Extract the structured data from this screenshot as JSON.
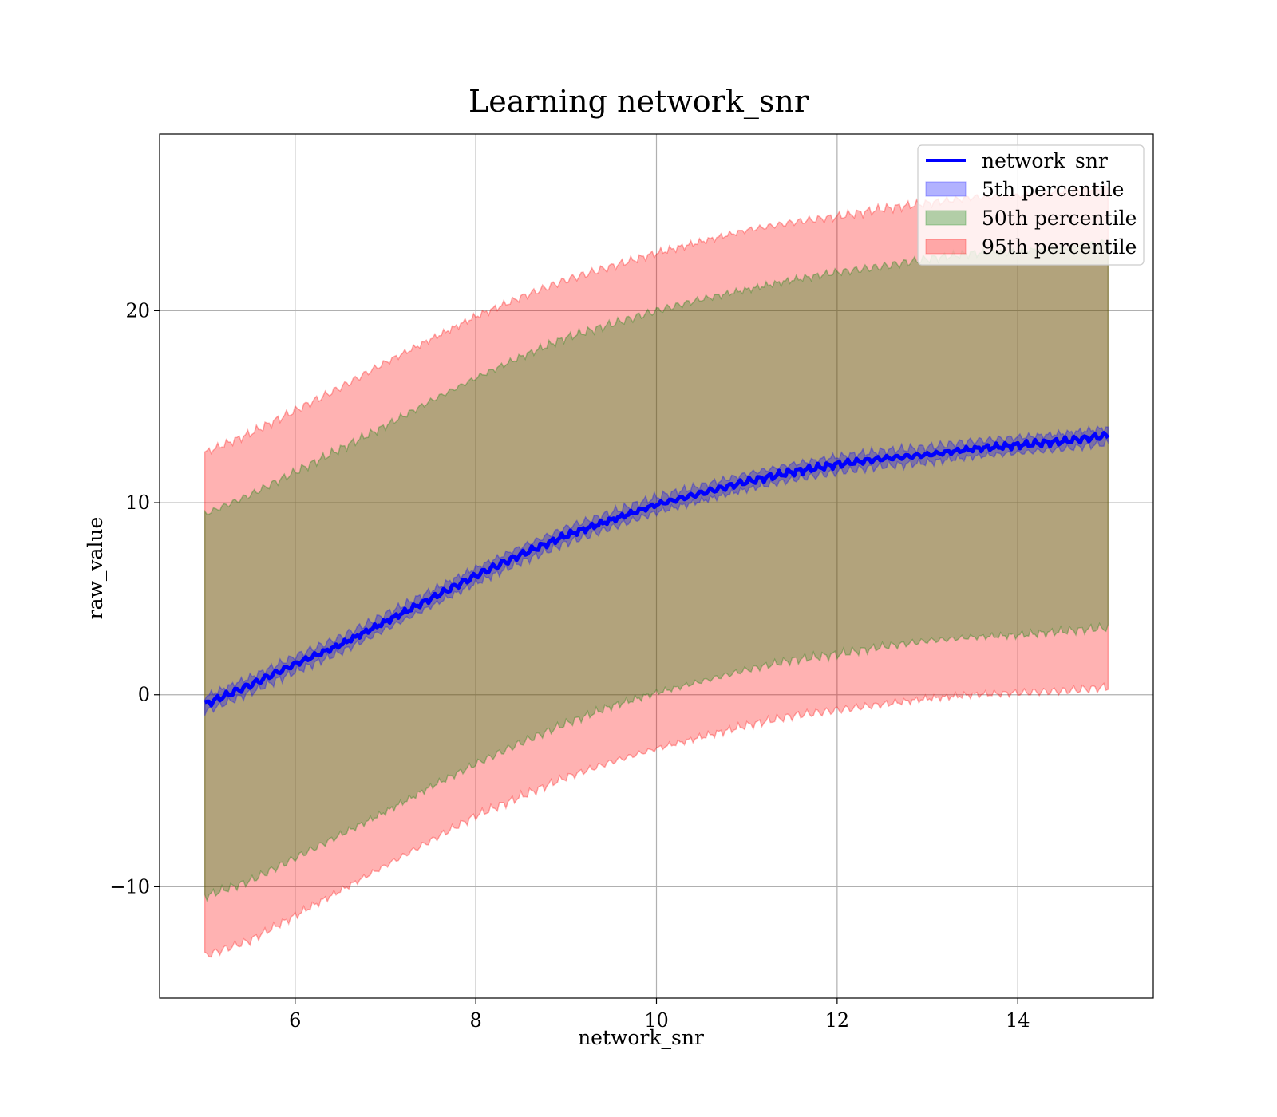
{
  "chart_data": {
    "type": "area",
    "title": "Learning network_snr",
    "xlabel": "network_snr",
    "ylabel": "raw_value",
    "xlim": [
      4.5,
      15.5
    ],
    "ylim": [
      -15.8,
      29.2
    ],
    "xticks": [
      6,
      8,
      10,
      12,
      14
    ],
    "yticks": [
      -10,
      0,
      10,
      20
    ],
    "xtick_labels": [
      "6",
      "8",
      "10",
      "12",
      "14"
    ],
    "ytick_labels": [
      "−10",
      "0",
      "10",
      "20"
    ],
    "grid": true,
    "legend_position": "top-right",
    "x": [
      5,
      5.5,
      6,
      6.5,
      7,
      7.5,
      8,
      8.5,
      9,
      9.5,
      10,
      10.5,
      11,
      11.5,
      12,
      12.5,
      13,
      13.5,
      14,
      14.5,
      15
    ],
    "series": [
      {
        "name": "network_snr",
        "kind": "line",
        "color": "#0000ff",
        "values": [
          -0.5,
          0.5,
          1.6,
          2.6,
          3.8,
          5.0,
          6.2,
          7.3,
          8.3,
          9.1,
          9.9,
          10.5,
          11.1,
          11.6,
          12.0,
          12.3,
          12.5,
          12.8,
          13.0,
          13.2,
          13.5
        ]
      },
      {
        "name": "5th percentile",
        "kind": "band",
        "color": "#0000ff",
        "lower": [
          -0.9,
          0.1,
          1.2,
          2.2,
          3.4,
          4.6,
          5.8,
          6.9,
          7.9,
          8.7,
          9.5,
          10.1,
          10.7,
          11.2,
          11.6,
          11.9,
          12.1,
          12.4,
          12.6,
          12.8,
          13.1
        ],
        "upper": [
          -0.1,
          0.9,
          2.0,
          3.0,
          4.2,
          5.4,
          6.6,
          7.7,
          8.7,
          9.5,
          10.3,
          10.9,
          11.5,
          12.0,
          12.4,
          12.7,
          12.9,
          13.2,
          13.4,
          13.6,
          13.9
        ]
      },
      {
        "name": "50th percentile",
        "kind": "band",
        "color": "#008000",
        "lower": [
          -10.5,
          -9.7,
          -8.5,
          -7.3,
          -6.1,
          -4.8,
          -3.6,
          -2.5,
          -1.5,
          -0.6,
          0.1,
          0.7,
          1.3,
          1.8,
          2.1,
          2.5,
          2.8,
          3.0,
          3.1,
          3.3,
          3.5
        ],
        "upper": [
          9.4,
          10.4,
          11.6,
          12.8,
          14.0,
          15.3,
          16.5,
          17.6,
          18.6,
          19.3,
          20.0,
          20.6,
          21.1,
          21.6,
          22.0,
          22.3,
          22.7,
          23.0,
          23.1,
          23.3,
          23.6
        ]
      },
      {
        "name": "95th percentile",
        "kind": "band",
        "color": "#ff0000",
        "lower": [
          -13.6,
          -12.8,
          -11.5,
          -10.2,
          -8.9,
          -7.6,
          -6.3,
          -5.3,
          -4.3,
          -3.5,
          -2.8,
          -2.2,
          -1.6,
          -1.1,
          -0.8,
          -0.5,
          -0.2,
          0.0,
          0.1,
          0.2,
          0.4
        ],
        "upper": [
          12.6,
          13.6,
          14.8,
          16.0,
          17.3,
          18.5,
          19.7,
          20.7,
          21.6,
          22.3,
          23.0,
          23.6,
          24.2,
          24.6,
          24.9,
          25.3,
          25.6,
          25.9,
          26.0,
          26.2,
          26.4
        ]
      }
    ]
  }
}
